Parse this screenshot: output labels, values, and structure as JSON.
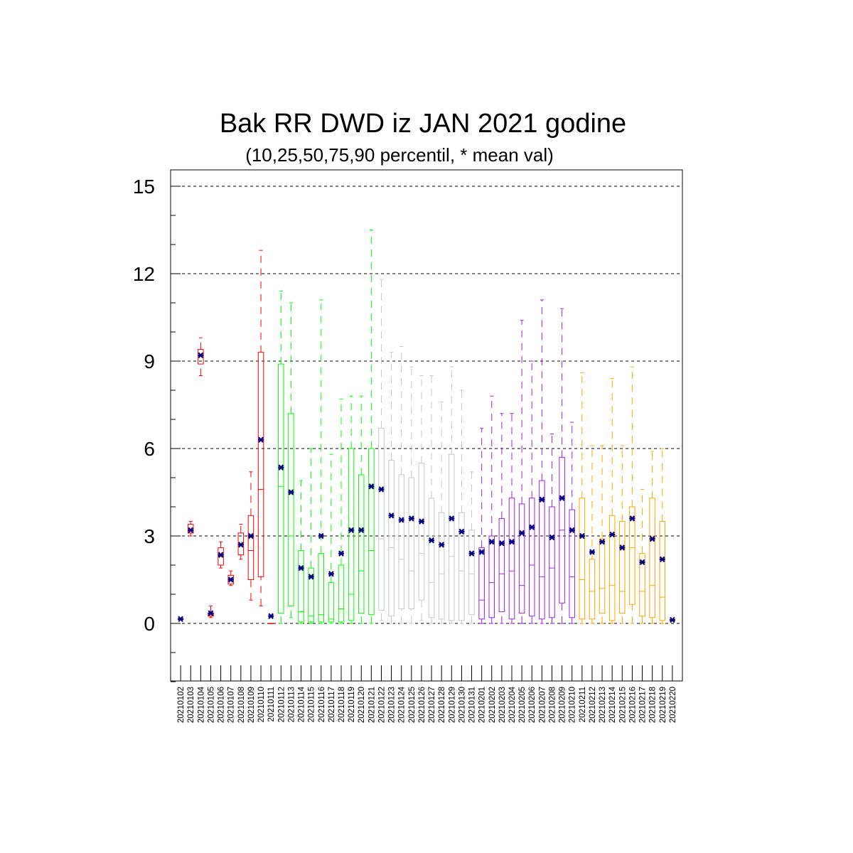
{
  "chart_data": {
    "type": "box",
    "title": "Bak RR DWD iz JAN 2021 godine",
    "subtitle": "(10,25,50,75,90 percentil, * mean val)",
    "xlabel": "",
    "ylabel": "",
    "ylim": [
      -2,
      15.5
    ],
    "yticks": [
      0,
      3,
      6,
      9,
      12,
      15
    ],
    "ytick_labels": [
      "0",
      "3",
      "6",
      "9",
      "12",
      "15"
    ],
    "grid": "horizontal dashed at major ticks",
    "categories": [
      "20210102",
      "20210103",
      "20210104",
      "20210105",
      "20210106",
      "20210107",
      "20210108",
      "20210109",
      "20210110",
      "20210111",
      "20210112",
      "20210113",
      "20210114",
      "20210115",
      "20210116",
      "20210117",
      "20210118",
      "20210119",
      "20210120",
      "20210121",
      "20210122",
      "20210123",
      "20210124",
      "20210125",
      "20210126",
      "20210127",
      "20210128",
      "20210129",
      "20210130",
      "20210131",
      "20210201",
      "20210202",
      "20210203",
      "20210204",
      "20210205",
      "20210206",
      "20210207",
      "20210208",
      "20210209",
      "20210210",
      "20210211",
      "20210212",
      "20210213",
      "20210214",
      "20210215",
      "20210216",
      "20210217",
      "20210218",
      "20210219",
      "20210220"
    ],
    "colors": [
      "#ff0000",
      "#ff0000",
      "#ff0000",
      "#ff0000",
      "#ff0000",
      "#ff0000",
      "#ff0000",
      "#ff0000",
      "#ff0000",
      "#ff0000",
      "#00ff00",
      "#00ff00",
      "#00ff00",
      "#00ff00",
      "#00ff00",
      "#00ff00",
      "#00ff00",
      "#00ff00",
      "#00ff00",
      "#00ff00",
      "#c8c8c8",
      "#c8c8c8",
      "#c8c8c8",
      "#c8c8c8",
      "#c8c8c8",
      "#c8c8c8",
      "#c8c8c8",
      "#c8c8c8",
      "#c8c8c8",
      "#c8c8c8",
      "#a020f0",
      "#a020f0",
      "#a020f0",
      "#a020f0",
      "#a020f0",
      "#a020f0",
      "#a020f0",
      "#a020f0",
      "#a020f0",
      "#a020f0",
      "#ffa500",
      "#ffa500",
      "#ffa500",
      "#ffa500",
      "#ffa500",
      "#ffa500",
      "#ffa500",
      "#ffa500",
      "#ffa500",
      "#ffa500"
    ],
    "mean_marker_color": "#000080",
    "p10": [
      0.15,
      3.0,
      8.5,
      0.2,
      1.9,
      1.3,
      2.2,
      0.8,
      0.6,
      0.0,
      0.0,
      0.2,
      0.0,
      0.0,
      0.0,
      0.0,
      0.0,
      0.0,
      0.0,
      0.0,
      0.1,
      0.0,
      0.0,
      0.0,
      0.1,
      0.0,
      0.0,
      0.0,
      0.0,
      0.0,
      0.0,
      0.0,
      0.0,
      0.0,
      0.0,
      0.0,
      0.0,
      0.0,
      0.0,
      0.0,
      0.0,
      0.0,
      0.0,
      0.0,
      0.0,
      0.0,
      0.0,
      0.0,
      0.0,
      0.1
    ],
    "p25": [
      0.15,
      3.1,
      8.9,
      0.25,
      2.0,
      1.35,
      2.35,
      1.5,
      1.6,
      0.0,
      0.35,
      0.6,
      0.05,
      0.05,
      0.05,
      0.05,
      0.05,
      0.1,
      0.35,
      0.3,
      0.45,
      0.25,
      0.5,
      0.5,
      0.8,
      0.2,
      0.15,
      0.1,
      0.1,
      0.3,
      0.15,
      0.2,
      0.4,
      0.15,
      0.35,
      0.25,
      0.15,
      0.2,
      0.7,
      0.2,
      0.15,
      0.15,
      0.35,
      0.1,
      0.35,
      0.65,
      0.25,
      0.2,
      0.1,
      0.1
    ],
    "p50": [
      0.15,
      3.2,
      9.2,
      0.3,
      2.3,
      1.5,
      2.7,
      2.5,
      4.6,
      0.0,
      4.7,
      3.0,
      0.4,
      0.25,
      0.3,
      0.15,
      0.5,
      1.0,
      1.8,
      2.5,
      2.9,
      2.6,
      2.2,
      1.8,
      2.4,
      1.4,
      1.7,
      2.3,
      1.8,
      1.7,
      0.8,
      1.4,
      1.7,
      1.8,
      1.3,
      2.0,
      1.6,
      1.9,
      3.2,
      1.6,
      1.5,
      1.1,
      1.2,
      1.3,
      1.1,
      2.6,
      1.1,
      1.3,
      0.9,
      0.1
    ],
    "p75": [
      0.15,
      3.4,
      9.4,
      0.35,
      2.6,
      1.65,
      3.1,
      3.7,
      9.3,
      0.0,
      8.9,
      7.2,
      2.5,
      1.9,
      2.4,
      1.4,
      2.0,
      6.0,
      5.1,
      6.0,
      6.7,
      5.6,
      5.1,
      5.0,
      5.5,
      4.3,
      3.8,
      5.8,
      3.8,
      3.2,
      2.6,
      3.0,
      3.6,
      4.3,
      4.1,
      4.3,
      4.9,
      4.0,
      5.7,
      3.9,
      4.3,
      2.2,
      2.9,
      3.7,
      3.5,
      4.0,
      2.4,
      4.3,
      3.5,
      0.1
    ],
    "p90": [
      0.15,
      3.5,
      9.8,
      0.6,
      2.8,
      1.8,
      3.4,
      5.2,
      12.8,
      0.0,
      11.4,
      11.0,
      4.9,
      6.0,
      11.1,
      5.8,
      7.7,
      7.8,
      7.8,
      13.5,
      11.8,
      9.3,
      9.5,
      8.8,
      8.5,
      8.5,
      7.6,
      8.8,
      8.0,
      5.2,
      6.7,
      7.8,
      7.2,
      7.2,
      10.4,
      9.0,
      11.1,
      6.5,
      10.8,
      6.9,
      8.6,
      6.1,
      6.1,
      8.4,
      6.1,
      8.8,
      4.6,
      5.9,
      6.0,
      0.1
    ],
    "mean": [
      0.15,
      3.2,
      9.2,
      0.35,
      2.35,
      1.5,
      2.7,
      3.0,
      6.3,
      0.25,
      5.35,
      4.5,
      1.9,
      1.6,
      3.0,
      1.7,
      2.4,
      3.2,
      3.2,
      4.7,
      4.6,
      3.7,
      3.55,
      3.6,
      3.5,
      2.85,
      2.7,
      3.6,
      3.15,
      2.4,
      2.45,
      2.8,
      2.75,
      2.8,
      3.1,
      3.3,
      4.25,
      2.95,
      4.3,
      3.2,
      3.0,
      2.45,
      2.8,
      3.05,
      2.6,
      3.6,
      2.1,
      2.9,
      2.2,
      0.12
    ]
  }
}
